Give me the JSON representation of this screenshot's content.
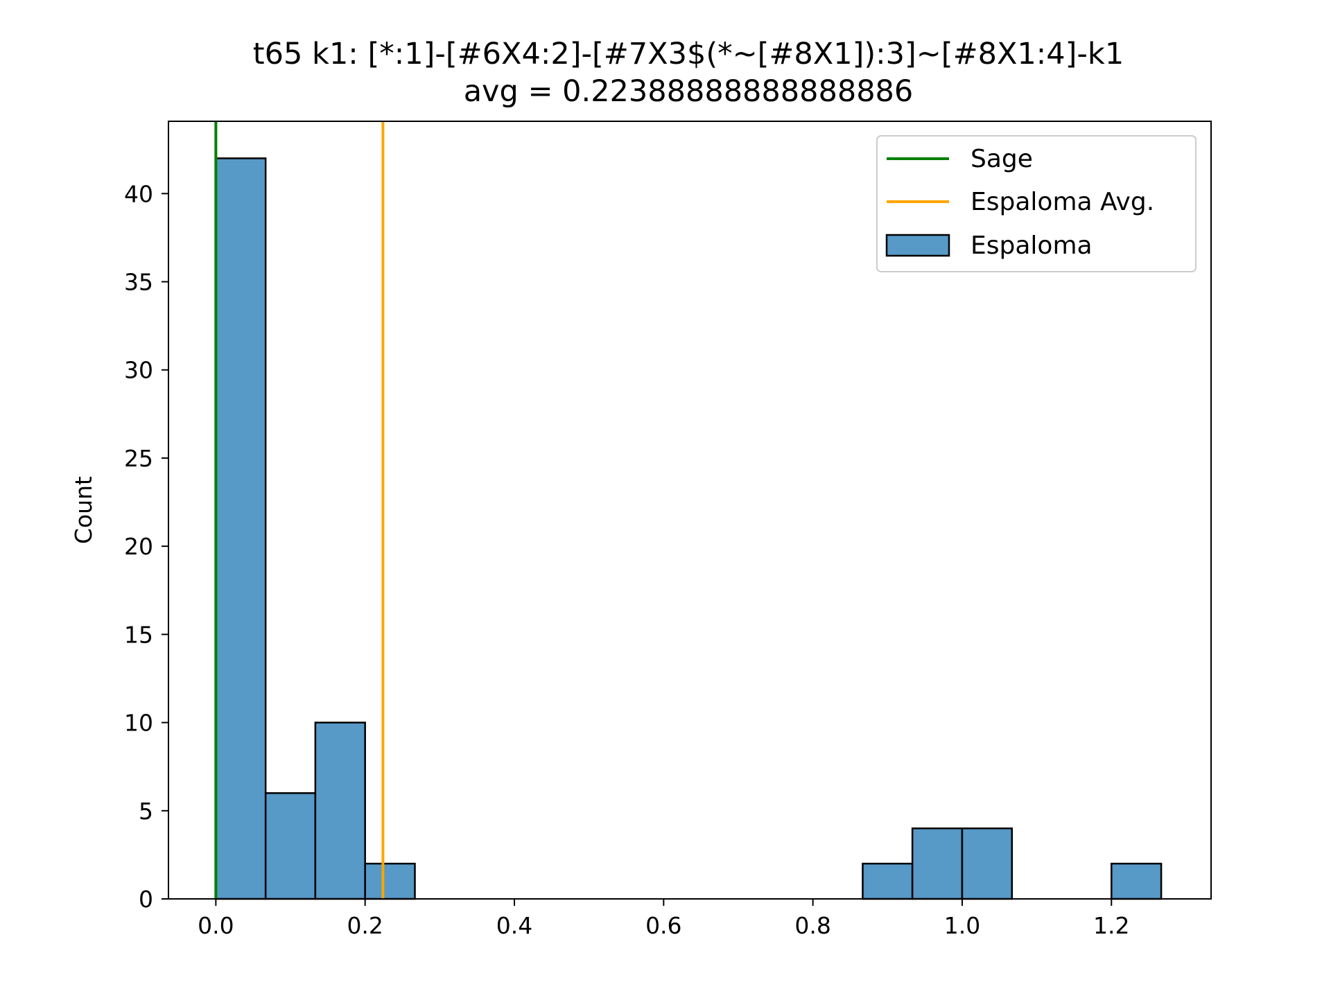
{
  "chart_data": {
    "type": "bar",
    "title": "t65 k1: [*:1]-[#6X4:2]-[#7X3$(*~[#8X1]):3]~[#8X1:4]-k1",
    "subtitle": "avg = 0.22388888888888886",
    "xlabel": "",
    "ylabel": "Count",
    "xlim": [
      -0.0635,
      1.3335
    ],
    "ylim": [
      0,
      44.1
    ],
    "x_ticks": [
      "0.0",
      "0.2",
      "0.4",
      "0.6",
      "0.8",
      "1.0",
      "1.2"
    ],
    "x_tick_values": [
      0.0,
      0.2,
      0.4,
      0.6,
      0.8,
      1.0,
      1.2
    ],
    "y_ticks": [
      "0",
      "5",
      "10",
      "15",
      "20",
      "25",
      "30",
      "35",
      "40"
    ],
    "y_tick_values": [
      0,
      5,
      10,
      15,
      20,
      25,
      30,
      35,
      40
    ],
    "grid": false,
    "legend_position": "top-right",
    "bins": [
      {
        "start": 0.0,
        "end": 0.0667,
        "count": 42
      },
      {
        "start": 0.0667,
        "end": 0.1333,
        "count": 6
      },
      {
        "start": 0.1333,
        "end": 0.2,
        "count": 10
      },
      {
        "start": 0.2,
        "end": 0.2667,
        "count": 2
      },
      {
        "start": 0.2667,
        "end": 0.3333,
        "count": 0
      },
      {
        "start": 0.3333,
        "end": 0.4,
        "count": 0
      },
      {
        "start": 0.4,
        "end": 0.4667,
        "count": 0
      },
      {
        "start": 0.4667,
        "end": 0.5333,
        "count": 0
      },
      {
        "start": 0.5333,
        "end": 0.6,
        "count": 0
      },
      {
        "start": 0.6,
        "end": 0.6667,
        "count": 0
      },
      {
        "start": 0.6667,
        "end": 0.7333,
        "count": 0
      },
      {
        "start": 0.7333,
        "end": 0.8,
        "count": 0
      },
      {
        "start": 0.8,
        "end": 0.8667,
        "count": 0
      },
      {
        "start": 0.8667,
        "end": 0.9333,
        "count": 2
      },
      {
        "start": 0.9333,
        "end": 1.0,
        "count": 4
      },
      {
        "start": 1.0,
        "end": 1.0667,
        "count": 4
      },
      {
        "start": 1.0667,
        "end": 1.1333,
        "count": 0
      },
      {
        "start": 1.1333,
        "end": 1.2,
        "count": 0
      },
      {
        "start": 1.2,
        "end": 1.2667,
        "count": 2
      }
    ],
    "vlines": [
      {
        "name": "Sage",
        "x": 0.0,
        "color": "#008000"
      },
      {
        "name": "Espaloma Avg.",
        "x": 0.22388888888888886,
        "color": "#ffa500"
      }
    ],
    "series": [
      {
        "name": "Espaloma",
        "color": "#5799c7",
        "edge_color": "#000000"
      }
    ],
    "legend": [
      "Sage",
      "Espaloma Avg.",
      "Espaloma"
    ]
  }
}
